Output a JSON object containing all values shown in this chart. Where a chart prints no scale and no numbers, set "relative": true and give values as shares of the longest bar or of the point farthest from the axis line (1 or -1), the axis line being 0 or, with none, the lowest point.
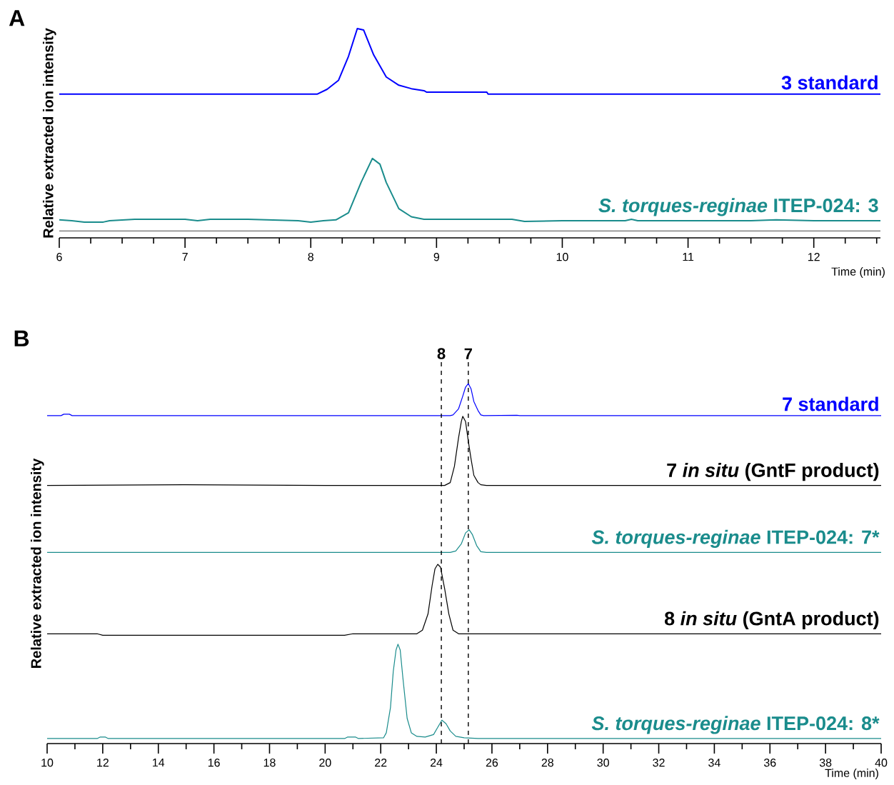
{
  "chart_data": [
    {
      "type": "line",
      "title": "A",
      "ylabel": "Relative extracted ion intensity",
      "xlabel": "Time (min)",
      "relative": true,
      "xlim": [
        6,
        12.53
      ],
      "xticks": [
        6,
        {
          "value": 6.25,
          "label": null
        },
        {
          "value": 6.5,
          "label": null
        },
        {
          "value": 6.75,
          "label": null
        },
        7,
        {
          "value": 7.25,
          "label": null
        },
        {
          "value": 7.5,
          "label": null
        },
        {
          "value": 7.75,
          "label": null
        },
        8,
        {
          "value": 8.25,
          "label": null
        },
        {
          "value": 8.5,
          "label": null
        },
        {
          "value": 8.75,
          "label": null
        },
        9,
        {
          "value": 9.25,
          "label": null
        },
        {
          "value": 9.5,
          "label": null
        },
        {
          "value": 9.75,
          "label": null
        },
        10,
        {
          "value": 10.25,
          "label": null
        },
        {
          "value": 10.5,
          "label": null
        },
        {
          "value": 10.75,
          "label": null
        },
        11,
        {
          "value": 11.25,
          "label": null
        },
        {
          "value": 11.5,
          "label": null
        },
        {
          "value": 11.75,
          "label": null
        },
        12,
        {
          "value": 12.25,
          "label": null
        },
        {
          "value": 12.5,
          "label": null
        }
      ],
      "series": [
        {
          "name": "3 standard",
          "color": "#0000ff",
          "x": [
            6,
            8.05,
            8.13,
            8.22,
            8.3,
            8.37,
            8.42,
            8.5,
            8.6,
            8.7,
            8.8,
            8.9,
            8.92,
            9.4,
            9.41,
            12.53
          ],
          "values": [
            0.676,
            0.676,
            0.7,
            0.744,
            0.863,
            1.0,
            0.993,
            0.87,
            0.761,
            0.72,
            0.703,
            0.693,
            0.686,
            0.686,
            0.676,
            0.676
          ]
        },
        {
          "name": "*S. torques-reginae* ITEP-024: 3",
          "color": "#1a8c8c",
          "x": [
            6,
            6.1,
            6.2,
            6.35,
            6.4,
            6.6,
            7.0,
            7.1,
            7.2,
            7.5,
            7.9,
            8.0,
            8.1,
            8.2,
            8.3,
            8.4,
            8.49,
            8.55,
            8.6,
            8.7,
            8.8,
            8.9,
            9.2,
            9.6,
            9.7,
            10.0,
            10.5,
            10.55,
            10.6,
            11.0,
            11.5,
            11.7,
            12.0,
            12.53
          ],
          "values": [
            0.055,
            0.051,
            0.044,
            0.044,
            0.051,
            0.058,
            0.058,
            0.051,
            0.058,
            0.058,
            0.051,
            0.044,
            0.051,
            0.055,
            0.09,
            0.24,
            0.358,
            0.33,
            0.24,
            0.11,
            0.07,
            0.058,
            0.058,
            0.058,
            0.047,
            0.051,
            0.051,
            0.058,
            0.051,
            0.051,
            0.051,
            0.055,
            0.051,
            0.051
          ]
        }
      ]
    },
    {
      "type": "line",
      "title": "B",
      "ylabel": "Relative extracted ion intensity",
      "xlabel": "Time (min)",
      "relative": true,
      "xlim": [
        10,
        40
      ],
      "xticks": [
        10,
        {
          "value": 11,
          "label": null
        },
        12,
        {
          "value": 13,
          "label": null
        },
        14,
        {
          "value": 15,
          "label": null
        },
        16,
        {
          "value": 17,
          "label": null
        },
        18,
        {
          "value": 19,
          "label": null
        },
        20,
        {
          "value": 21,
          "label": null
        },
        22,
        {
          "value": 23,
          "label": null
        },
        24,
        {
          "value": 25,
          "label": null
        },
        26,
        {
          "value": 27,
          "label": null
        },
        28,
        {
          "value": 29,
          "label": null
        },
        30,
        {
          "value": 31,
          "label": null
        },
        32,
        {
          "value": 33,
          "label": null
        },
        34,
        {
          "value": 35,
          "label": null
        },
        36,
        {
          "value": 37,
          "label": null
        },
        38,
        {
          "value": 39,
          "label": null
        },
        40
      ],
      "ref_lines": [
        {
          "axis": "x",
          "value": 24.18,
          "color": "#000000",
          "line_style": "dashed"
        },
        {
          "axis": "x",
          "value": 25.15,
          "color": "#000000",
          "line_style": "dashed"
        }
      ],
      "annotations": [
        "8",
        "7"
      ],
      "series": [
        {
          "name": "7 standard",
          "color": "#0000ff",
          "x": [
            10,
            10.5,
            10.6,
            10.8,
            10.9,
            11.5,
            24.5,
            24.6,
            24.8,
            24.95,
            25.05,
            25.15,
            25.25,
            25.35,
            25.5,
            25.6,
            25.7,
            26.9,
            27.0,
            40
          ],
          "values": [
            0.911,
            0.911,
            0.915,
            0.915,
            0.911,
            0.911,
            0.911,
            0.913,
            0.93,
            0.965,
            0.99,
            1.0,
            0.985,
            0.95,
            0.925,
            0.913,
            0.911,
            0.912,
            0.911,
            0.911
          ]
        },
        {
          "name": "7 *in situ* (GntF product)",
          "color": "#000000",
          "x": [
            10,
            15,
            20,
            24.3,
            24.5,
            24.65,
            24.8,
            24.9,
            24.95,
            25.05,
            25.15,
            25.25,
            25.35,
            25.5,
            25.6,
            25.8,
            40
          ],
          "values": [
            0.717,
            0.719,
            0.717,
            0.717,
            0.725,
            0.77,
            0.85,
            0.895,
            0.909,
            0.895,
            0.84,
            0.79,
            0.745,
            0.725,
            0.719,
            0.717,
            0.717
          ]
        },
        {
          "name": "*S. torques-reginae* ITEP-024: 7*",
          "color": "#1a8c8c",
          "x": [
            10,
            20.5,
            22,
            24.5,
            24.7,
            24.9,
            25.05,
            25.18,
            25.3,
            25.45,
            25.6,
            25.8,
            40
          ],
          "values": [
            0.531,
            0.531,
            0.531,
            0.531,
            0.535,
            0.555,
            0.585,
            0.594,
            0.58,
            0.55,
            0.533,
            0.531,
            0.531
          ]
        },
        {
          "name": "8 *in situ* (GntA product)",
          "color": "#000000",
          "x": [
            10,
            11.8,
            12,
            20.7,
            21.0,
            23.3,
            23.5,
            23.7,
            23.85,
            23.95,
            24.05,
            24.15,
            24.3,
            24.45,
            24.6,
            24.8,
            40
          ],
          "values": [
            0.305,
            0.305,
            0.301,
            0.301,
            0.305,
            0.305,
            0.315,
            0.36,
            0.44,
            0.485,
            0.498,
            0.49,
            0.43,
            0.36,
            0.315,
            0.305,
            0.305
          ]
        },
        {
          "name": "*S. torques-reginae* ITEP-024: 8*",
          "color": "#1a8c8c",
          "x": [
            10,
            11.8,
            11.9,
            12.1,
            12.2,
            20.7,
            20.8,
            21.1,
            21.2,
            22.1,
            22.2,
            22.35,
            22.45,
            22.55,
            22.62,
            22.7,
            22.8,
            22.95,
            23.1,
            23.3,
            23.6,
            23.9,
            24.05,
            24.2,
            24.35,
            24.5,
            24.7,
            25.0,
            25.5,
            40
          ],
          "values": [
            0.014,
            0.014,
            0.018,
            0.018,
            0.014,
            0.014,
            0.018,
            0.018,
            0.014,
            0.016,
            0.03,
            0.1,
            0.2,
            0.26,
            0.276,
            0.26,
            0.18,
            0.07,
            0.03,
            0.02,
            0.018,
            0.025,
            0.045,
            0.065,
            0.055,
            0.035,
            0.02,
            0.016,
            0.014,
            0.014
          ]
        }
      ]
    }
  ]
}
